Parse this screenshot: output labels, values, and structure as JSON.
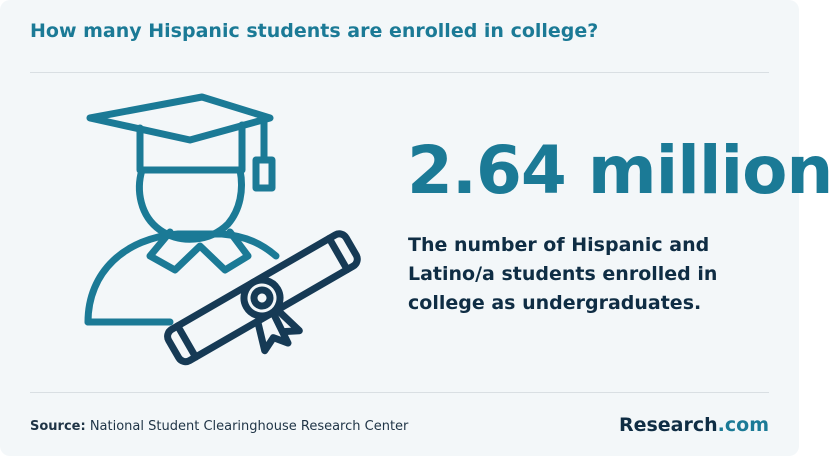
{
  "header": {
    "title": "How many Hispanic students are enrolled in college?"
  },
  "stat": {
    "value": "2.64 million",
    "description": "The number of Hispanic and Latino/a students enrolled in college as undergraduates."
  },
  "footer": {
    "source_label": "Source:",
    "source": "National Student Clearinghouse Research Center",
    "logo_main": "Research",
    "logo_suffix": ".com"
  }
}
